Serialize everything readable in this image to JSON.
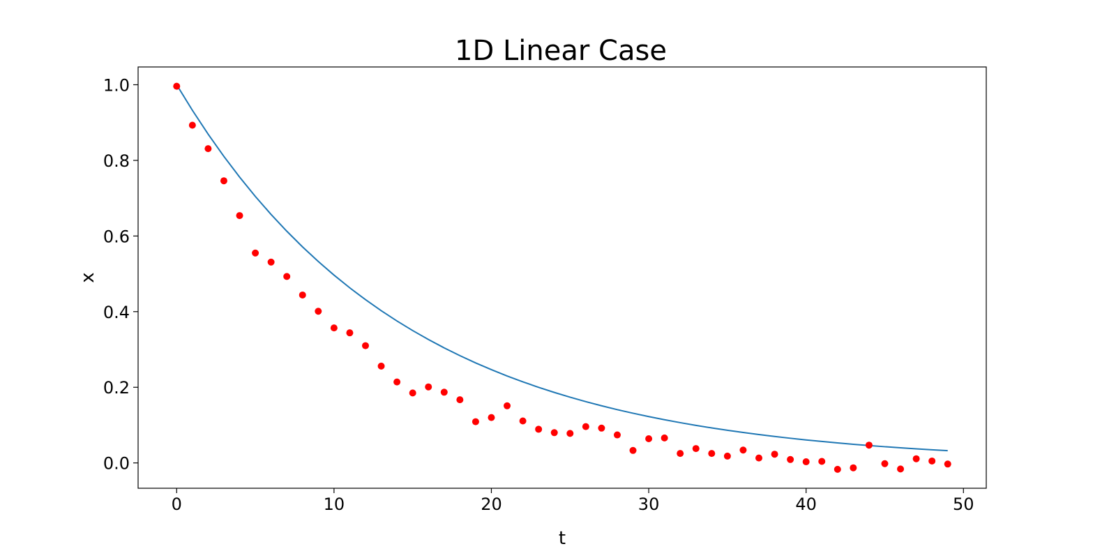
{
  "chart_data": {
    "type": "scatter",
    "title": "1D Linear Case",
    "xlabel": "t",
    "ylabel": "x",
    "xlim": [
      -2.45,
      51.45
    ],
    "ylim": [
      -0.067,
      1.047
    ],
    "xticks": [
      0,
      10,
      20,
      30,
      40,
      50
    ],
    "yticks": [
      0.0,
      0.2,
      0.4,
      0.6,
      0.8,
      1.0
    ],
    "xtick_labels": [
      "0",
      "10",
      "20",
      "30",
      "40",
      "50"
    ],
    "ytick_labels": [
      "0.0",
      "0.2",
      "0.4",
      "0.6",
      "0.8",
      "1.0"
    ],
    "grid": false,
    "series": [
      {
        "kind": "line",
        "color": "#1f77b4",
        "x_start": 0,
        "x_end": 49,
        "x_step": 1,
        "formula": "exp(-0.07 t)",
        "decay_rate": 0.07
      },
      {
        "kind": "scatter",
        "color": "#ff0000",
        "x": [
          0,
          1,
          2,
          3,
          4,
          5,
          6,
          7,
          8,
          9,
          10,
          11,
          12,
          13,
          14,
          15,
          16,
          17,
          18,
          19,
          20,
          21,
          22,
          23,
          24,
          25,
          26,
          27,
          28,
          29,
          30,
          31,
          32,
          33,
          34,
          35,
          36,
          37,
          38,
          39,
          40,
          41,
          42,
          43,
          44,
          45,
          46,
          47,
          48,
          49
        ],
        "y": [
          0.996,
          0.893,
          0.831,
          0.746,
          0.654,
          0.555,
          0.531,
          0.493,
          0.444,
          0.401,
          0.357,
          0.344,
          0.31,
          0.256,
          0.214,
          0.185,
          0.201,
          0.187,
          0.167,
          0.109,
          0.12,
          0.151,
          0.111,
          0.089,
          0.08,
          0.078,
          0.096,
          0.092,
          0.074,
          0.033,
          0.064,
          0.066,
          0.025,
          0.038,
          0.025,
          0.018,
          0.034,
          0.013,
          0.023,
          0.009,
          0.003,
          0.004,
          -0.017,
          -0.013,
          0.047,
          -0.002,
          -0.016,
          0.011,
          0.005,
          -0.003
        ]
      }
    ]
  }
}
